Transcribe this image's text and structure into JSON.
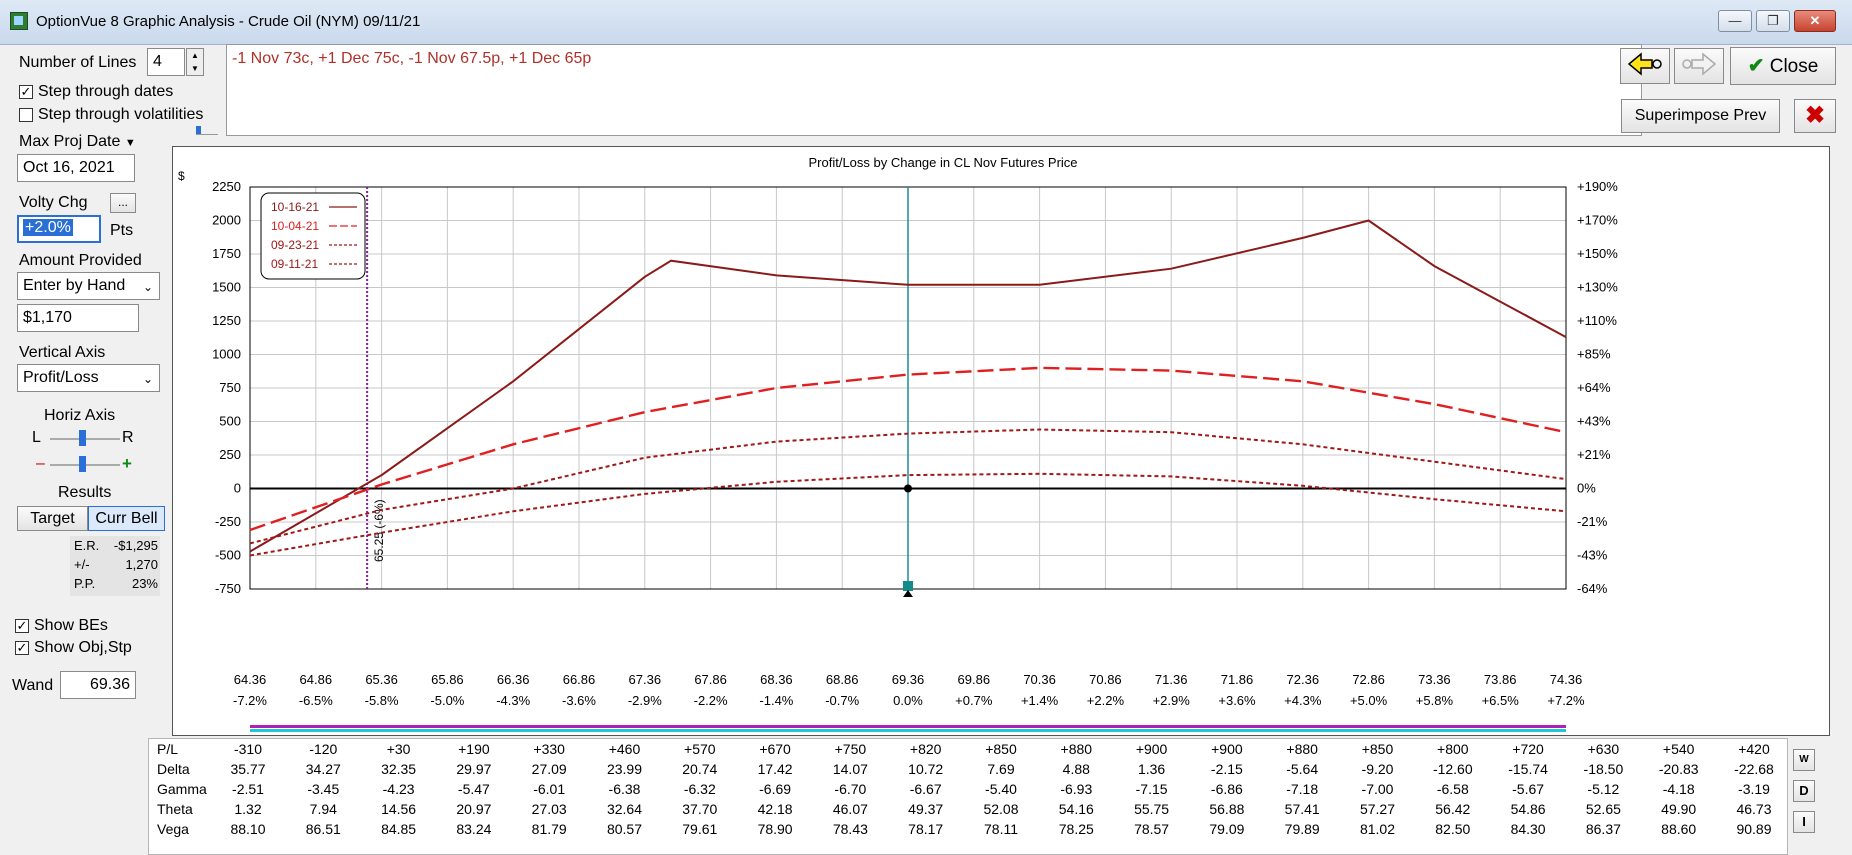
{
  "window": {
    "title": "OptionVue 8 Graphic Analysis - Crude Oil (NYM)  09/11/21",
    "minimize_icon": "minimize-icon",
    "maximize_icon": "maximize-icon",
    "close_icon": "close-icon"
  },
  "controls": {
    "number_of_lines_label": "Number of Lines",
    "number_of_lines_value": "4",
    "step_dates_label": "Step through dates",
    "step_dates_checked": true,
    "step_vols_label": "Step through volatilities",
    "step_vols_checked": false,
    "max_proj_date_label": "Max Proj Date",
    "max_proj_date_value": "Oct 16, 2021",
    "volty_chg_label": "Volty Chg",
    "volty_chg_value": "+2.0%",
    "volty_units": "Pts",
    "ellipsis_label": "...",
    "amount_provided_label": "Amount Provided",
    "amount_provided_value": "Enter by Hand",
    "amount_value": "$1,170",
    "vertical_axis_label": "Vertical Axis",
    "vertical_axis_value": "Profit/Loss",
    "horiz_axis_label": "Horiz Axis",
    "horiz_l": "L",
    "horiz_r": "R",
    "minus": "–",
    "plus": "+",
    "results_label": "Results",
    "target_label": "Target",
    "curr_bell_label": "Curr Bell",
    "er_label": "E.R.",
    "er_value": "-$1,295",
    "pm_label": "+/-",
    "pm_value": "1,270",
    "pp_label": "P.P.",
    "pp_value": "23%",
    "show_bes_label": "Show BEs",
    "show_bes_checked": true,
    "show_obj_label": "Show Obj,Stp",
    "show_obj_checked": true,
    "wand_label": "Wand",
    "wand_value": "69.36"
  },
  "strategy": "-1 Nov 73c, +1 Dec 75c, -1 Nov 67.5p, +1 Dec 65p",
  "buttons": {
    "back_icon": "arrow-left-icon",
    "forward_icon": "arrow-right-icon",
    "close_label": "Close",
    "check_icon": "checkmark-icon",
    "superimpose_label": "Superimpose Prev",
    "delete_icon": "red-x-icon"
  },
  "chart_data": {
    "type": "line",
    "title": "Profit/Loss by Change in CL Nov Futures Price",
    "ylabel": "$",
    "ylim": [
      -750,
      2250
    ],
    "xlim": [
      64.36,
      74.36
    ],
    "x_ticks": [
      "64.36",
      "64.86",
      "65.36",
      "65.86",
      "66.36",
      "66.86",
      "67.36",
      "67.86",
      "68.36",
      "68.86",
      "69.36",
      "69.86",
      "70.36",
      "70.86",
      "71.36",
      "71.86",
      "72.36",
      "72.86",
      "73.36",
      "73.86",
      "74.36"
    ],
    "x_pct_ticks": [
      "-7.2%",
      "-6.5%",
      "-5.8%",
      "-5.0%",
      "-4.3%",
      "-3.6%",
      "-2.9%",
      "-2.2%",
      "-1.4%",
      "-0.7%",
      "0.0%",
      "+0.7%",
      "+1.4%",
      "+2.2%",
      "+2.9%",
      "+3.6%",
      "+4.3%",
      "+5.0%",
      "+5.8%",
      "+6.5%",
      "+7.2%"
    ],
    "y_ticks": [
      2250,
      2000,
      1750,
      1500,
      1250,
      1000,
      750,
      500,
      250,
      0,
      -250,
      -500,
      -750
    ],
    "y2_ticks": [
      "+190%",
      "+170%",
      "+150%",
      "+130%",
      "+110%",
      "+85%",
      "+64%",
      "+43%",
      "+21%",
      "0%",
      "-21%",
      "-43%",
      "-64%"
    ],
    "grid": true,
    "legend_position": "top-left",
    "breakeven_label": "65.25 (-6%)",
    "breakeven_x": 65.25,
    "current_price": 69.36,
    "series": [
      {
        "name": "10-16-21",
        "color": "#8b1a1a",
        "dash": "solid",
        "x": [
          64.36,
          65.36,
          66.36,
          67.36,
          67.56,
          68.36,
          69.36,
          70.36,
          71.36,
          72.36,
          72.86,
          73.36,
          74.36
        ],
        "y": [
          -470,
          100,
          800,
          1580,
          1700,
          1590,
          1520,
          1520,
          1640,
          1870,
          2000,
          1660,
          1130
        ]
      },
      {
        "name": "10-04-21",
        "color": "#e02020",
        "dash": "long",
        "x": [
          64.36,
          65.36,
          66.36,
          67.36,
          68.36,
          69.36,
          70.36,
          71.36,
          72.36,
          73.36,
          74.36
        ],
        "y": [
          -310,
          30,
          330,
          570,
          750,
          850,
          900,
          880,
          800,
          630,
          420
        ]
      },
      {
        "name": "09-23-21",
        "color": "#a01818",
        "dash": "short",
        "x": [
          64.36,
          65.36,
          66.36,
          67.36,
          68.36,
          69.36,
          70.36,
          71.36,
          72.36,
          73.36,
          74.36
        ],
        "y": [
          -410,
          -160,
          0,
          230,
          350,
          410,
          440,
          420,
          330,
          200,
          70
        ]
      },
      {
        "name": "09-11-21",
        "color": "#a01818",
        "dash": "short",
        "x": [
          64.36,
          65.36,
          66.36,
          67.36,
          68.36,
          69.36,
          70.36,
          71.36,
          72.36,
          73.36,
          74.36
        ],
        "y": [
          -500,
          -330,
          -170,
          -40,
          50,
          100,
          110,
          90,
          20,
          -80,
          -170
        ]
      }
    ]
  },
  "greeks": {
    "rows": [
      {
        "name": "P/L",
        "values": [
          "-310",
          "-120",
          "+30",
          "+190",
          "+330",
          "+460",
          "+570",
          "+670",
          "+750",
          "+820",
          "+850",
          "+880",
          "+900",
          "+900",
          "+880",
          "+850",
          "+800",
          "+720",
          "+630",
          "+540",
          "+420"
        ]
      },
      {
        "name": "Delta",
        "values": [
          "35.77",
          "34.27",
          "32.35",
          "29.97",
          "27.09",
          "23.99",
          "20.74",
          "17.42",
          "14.07",
          "10.72",
          "7.69",
          "4.88",
          "1.36",
          "-2.15",
          "-5.64",
          "-9.20",
          "-12.60",
          "-15.74",
          "-18.50",
          "-20.83",
          "-22.68"
        ]
      },
      {
        "name": "Gamma",
        "values": [
          "-2.51",
          "-3.45",
          "-4.23",
          "-5.47",
          "-6.01",
          "-6.38",
          "-6.32",
          "-6.69",
          "-6.70",
          "-6.67",
          "-5.40",
          "-6.93",
          "-7.15",
          "-6.86",
          "-7.18",
          "-7.00",
          "-6.58",
          "-5.67",
          "-5.12",
          "-4.18",
          "-3.19"
        ]
      },
      {
        "name": "Theta",
        "values": [
          "1.32",
          "7.94",
          "14.56",
          "20.97",
          "27.03",
          "32.64",
          "37.70",
          "42.18",
          "46.07",
          "49.37",
          "52.08",
          "54.16",
          "55.75",
          "56.88",
          "57.41",
          "57.27",
          "56.42",
          "54.86",
          "52.65",
          "49.90",
          "46.73"
        ]
      },
      {
        "name": "Vega",
        "values": [
          "88.10",
          "86.51",
          "84.85",
          "83.24",
          "81.79",
          "80.57",
          "79.61",
          "78.90",
          "78.43",
          "78.17",
          "78.11",
          "78.25",
          "78.57",
          "79.09",
          "79.89",
          "81.02",
          "82.50",
          "84.30",
          "86.37",
          "88.60",
          "90.89"
        ]
      }
    ],
    "side_w": "W",
    "side_d": "D",
    "side_i": "I"
  }
}
